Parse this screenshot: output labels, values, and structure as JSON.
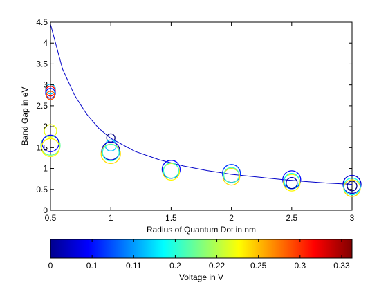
{
  "chart_data": {
    "type": "scatter",
    "xlabel": "Radius of Quantum Dot in nm",
    "ylabel": "Band Gap in eV",
    "xlim": [
      0.5,
      3
    ],
    "ylim": [
      0,
      4.5
    ],
    "xticks": [
      "0.5",
      "1",
      "1.5",
      "2",
      "2.5",
      "3"
    ],
    "yticks": [
      "0",
      "0.5",
      "1",
      "1.5",
      "2",
      "2.5",
      "3",
      "3.5",
      "4",
      "4.5"
    ],
    "grid": false,
    "fit_curve": {
      "type": "line",
      "color": "#0000c8",
      "x": [
        0.5,
        0.6,
        0.7,
        0.8,
        0.9,
        1.0,
        1.2,
        1.4,
        1.6,
        1.8,
        2.0,
        2.2,
        2.4,
        2.6,
        2.8,
        3.0
      ],
      "y": [
        4.45,
        3.38,
        2.75,
        2.3,
        1.96,
        1.72,
        1.41,
        1.21,
        1.06,
        0.95,
        0.86,
        0.8,
        0.74,
        0.69,
        0.65,
        0.62
      ]
    },
    "points": [
      {
        "x": 0.5,
        "y": 2.9,
        "size": 7,
        "voltage": 0.12
      },
      {
        "x": 0.5,
        "y": 2.85,
        "size": 7,
        "voltage": 0.33
      },
      {
        "x": 0.5,
        "y": 2.8,
        "size": 7,
        "voltage": 0.05
      },
      {
        "x": 0.5,
        "y": 2.75,
        "size": 6,
        "voltage": 0.3
      },
      {
        "x": 0.5,
        "y": 1.9,
        "size": 9,
        "voltage": 0.23
      },
      {
        "x": 0.5,
        "y": 1.55,
        "size": 14,
        "voltage": 0.18
      },
      {
        "x": 0.5,
        "y": 1.6,
        "size": 12,
        "voltage": 0.05
      },
      {
        "x": 0.5,
        "y": 1.5,
        "size": 13,
        "voltage": 0.24
      },
      {
        "x": 1.0,
        "y": 1.73,
        "size": 6,
        "voltage": 0.0
      },
      {
        "x": 1.0,
        "y": 1.55,
        "size": 8,
        "voltage": 0.12
      },
      {
        "x": 1.0,
        "y": 1.35,
        "size": 14,
        "voltage": 0.25
      },
      {
        "x": 1.0,
        "y": 1.42,
        "size": 13,
        "voltage": 0.03
      },
      {
        "x": 1.0,
        "y": 1.38,
        "size": 12,
        "voltage": 0.16
      },
      {
        "x": 1.5,
        "y": 0.98,
        "size": 13,
        "voltage": 0.05
      },
      {
        "x": 1.5,
        "y": 0.92,
        "size": 12,
        "voltage": 0.24
      },
      {
        "x": 1.5,
        "y": 0.95,
        "size": 11,
        "voltage": 0.16
      },
      {
        "x": 2.0,
        "y": 0.88,
        "size": 13,
        "voltage": 0.07
      },
      {
        "x": 2.0,
        "y": 0.8,
        "size": 12,
        "voltage": 0.25
      },
      {
        "x": 2.0,
        "y": 0.84,
        "size": 11,
        "voltage": 0.17
      },
      {
        "x": 2.5,
        "y": 0.73,
        "size": 13,
        "voltage": 0.05
      },
      {
        "x": 2.5,
        "y": 0.66,
        "size": 12,
        "voltage": 0.24
      },
      {
        "x": 2.5,
        "y": 0.7,
        "size": 11,
        "voltage": 0.15
      },
      {
        "x": 2.5,
        "y": 0.65,
        "size": 8,
        "voltage": 0.02
      },
      {
        "x": 3.0,
        "y": 0.62,
        "size": 13,
        "voltage": 0.03
      },
      {
        "x": 3.0,
        "y": 0.53,
        "size": 12,
        "voltage": 0.25
      },
      {
        "x": 3.0,
        "y": 0.57,
        "size": 12,
        "voltage": 0.15
      },
      {
        "x": 3.0,
        "y": 0.58,
        "size": 7,
        "voltage": 0.0
      }
    ],
    "colorbar": {
      "label": "Voltage in V",
      "ticks": [
        "0",
        "0.1",
        "0.11",
        "0.2",
        "0.22",
        "0.25",
        "0.3",
        "0.33"
      ],
      "placement": "bottom",
      "colormap": "jet"
    }
  }
}
